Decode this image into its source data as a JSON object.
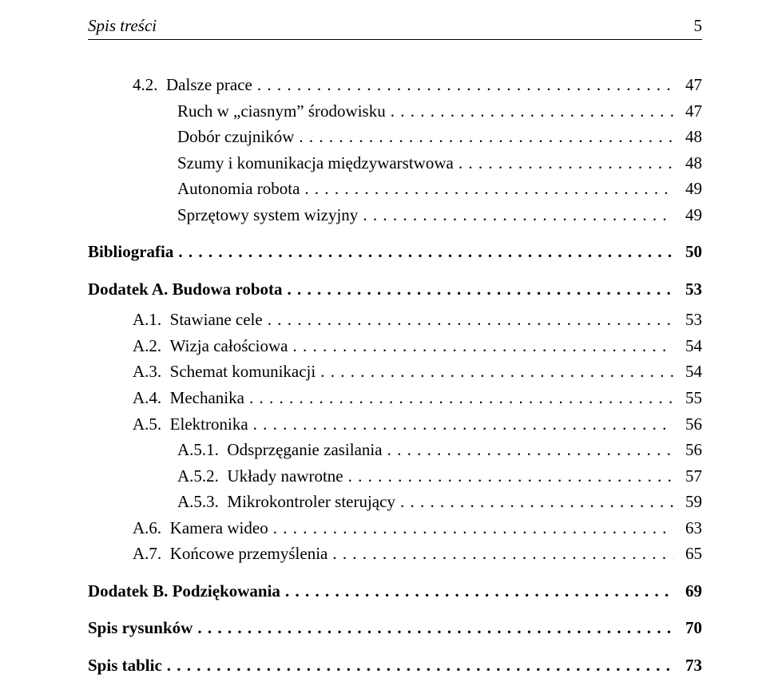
{
  "header": {
    "title": "Spis treści",
    "page_number": "5"
  },
  "entries": [
    {
      "indent": 1,
      "bold": false,
      "numbering": "4.2.",
      "title": "Dalsze prace",
      "page": "47",
      "gap": ""
    },
    {
      "indent": 2,
      "bold": false,
      "numbering": "",
      "title": "Ruch w „ciasnym” środowisku",
      "page": "47",
      "gap": ""
    },
    {
      "indent": 2,
      "bold": false,
      "numbering": "",
      "title": "Dobór czujników",
      "page": "48",
      "gap": ""
    },
    {
      "indent": 2,
      "bold": false,
      "numbering": "",
      "title": "Szumy i komunikacja międzywarstwowa",
      "page": "48",
      "gap": ""
    },
    {
      "indent": 2,
      "bold": false,
      "numbering": "",
      "title": "Autonomia robota",
      "page": "49",
      "gap": ""
    },
    {
      "indent": 2,
      "bold": false,
      "numbering": "",
      "title": "Sprzętowy system wizyjny",
      "page": "49",
      "gap": ""
    },
    {
      "indent": 0,
      "bold": true,
      "numbering": "",
      "title": "Bibliografia",
      "page": "50",
      "gap": "gap-med"
    },
    {
      "indent": 0,
      "bold": true,
      "numbering": "",
      "title": "Dodatek A. Budowa robota",
      "page": "53",
      "gap": "gap-med"
    },
    {
      "indent": 1,
      "bold": false,
      "numbering": "A.1.",
      "title": "Stawiane cele",
      "page": "53",
      "gap": "gap-small"
    },
    {
      "indent": 1,
      "bold": false,
      "numbering": "A.2.",
      "title": "Wizja całościowa",
      "page": "54",
      "gap": ""
    },
    {
      "indent": 1,
      "bold": false,
      "numbering": "A.3.",
      "title": "Schemat komunikacji",
      "page": "54",
      "gap": ""
    },
    {
      "indent": 1,
      "bold": false,
      "numbering": "A.4.",
      "title": "Mechanika",
      "page": "55",
      "gap": ""
    },
    {
      "indent": 1,
      "bold": false,
      "numbering": "A.5.",
      "title": "Elektronika",
      "page": "56",
      "gap": ""
    },
    {
      "indent": 2,
      "bold": false,
      "numbering": "A.5.1.",
      "title": "Odsprzęganie zasilania",
      "page": "56",
      "gap": ""
    },
    {
      "indent": 2,
      "bold": false,
      "numbering": "A.5.2.",
      "title": "Układy nawrotne",
      "page": "57",
      "gap": ""
    },
    {
      "indent": 2,
      "bold": false,
      "numbering": "A.5.3.",
      "title": "Mikrokontroler sterujący",
      "page": "59",
      "gap": ""
    },
    {
      "indent": 1,
      "bold": false,
      "numbering": "A.6.",
      "title": "Kamera wideo",
      "page": "63",
      "gap": ""
    },
    {
      "indent": 1,
      "bold": false,
      "numbering": "A.7.",
      "title": "Końcowe przemyślenia",
      "page": "65",
      "gap": ""
    },
    {
      "indent": 0,
      "bold": true,
      "numbering": "",
      "title": "Dodatek B. Podziękowania",
      "page": "69",
      "gap": "gap-med"
    },
    {
      "indent": 0,
      "bold": true,
      "numbering": "",
      "title": "Spis rysunków",
      "page": "70",
      "gap": "gap-med"
    },
    {
      "indent": 0,
      "bold": true,
      "numbering": "",
      "title": "Spis tablic",
      "page": "73",
      "gap": "gap-med"
    }
  ]
}
